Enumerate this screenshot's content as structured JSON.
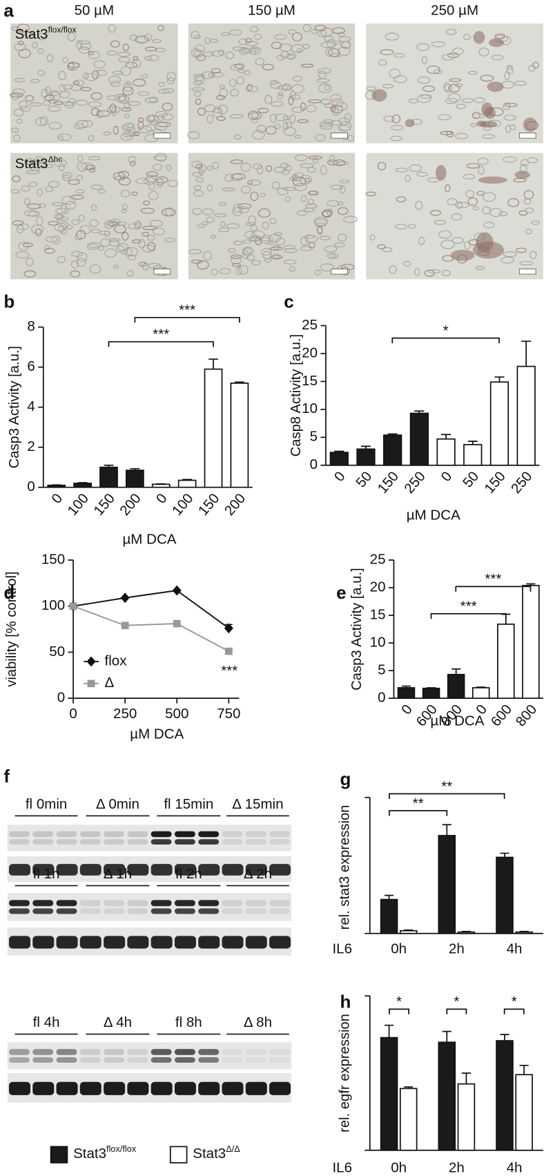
{
  "panel_a": {
    "letter": "a",
    "columns": [
      "50 µM",
      "150 µM",
      "250 µM"
    ],
    "rows": [
      {
        "base": "Stat3",
        "sup": "flox/flox"
      },
      {
        "base": "Stat3",
        "sup": "Δhc"
      }
    ]
  },
  "panel_f": {
    "letter": "f",
    "groups": [
      [
        "fl 0min",
        "Δ 0min",
        "fl 15min",
        "Δ 15min"
      ],
      [
        "fl 1h",
        "Δ 1h",
        "fl 2h",
        "Δ 2h"
      ],
      [
        "fl 4h",
        "Δ 4h",
        "fl 8h",
        "Δ 8h"
      ]
    ]
  },
  "legend": [
    {
      "base": "Stat3",
      "sup": "flox/flox"
    },
    {
      "base": "Stat3",
      "sup": "Δ/Δ"
    }
  ],
  "chart_data": [
    {
      "type": "bar",
      "panel": "b",
      "y_label": "Casp3 Activity [a.u.]",
      "x_label": "µM DCA",
      "categories": [
        "0",
        "100",
        "150",
        "200",
        "0",
        "100",
        "150",
        "200"
      ],
      "values": [
        0.1,
        0.2,
        1.0,
        0.85,
        0.15,
        0.35,
        5.9,
        5.2
      ],
      "errors": [
        0.02,
        0.03,
        0.1,
        0.08,
        0.02,
        0.04,
        0.5,
        0.05
      ],
      "colors": [
        "#1a1a1a",
        "#1a1a1a",
        "#1a1a1a",
        "#1a1a1a",
        "#ffffff",
        "#ffffff",
        "#ffffff",
        "#ffffff"
      ],
      "ylim": [
        0,
        8
      ],
      "yticks": [
        0,
        2,
        4,
        6,
        8
      ],
      "annotations": [
        "***",
        "***"
      ]
    },
    {
      "type": "bar",
      "panel": "c",
      "y_label": "Casp8 Activity [a.u.]",
      "x_label": "µM DCA",
      "categories": [
        "0",
        "50",
        "150",
        "250",
        "0",
        "50",
        "150",
        "250"
      ],
      "values": [
        2.3,
        2.9,
        5.4,
        9.3,
        4.7,
        3.7,
        14.9,
        17.7
      ],
      "errors": [
        0.2,
        0.5,
        0.2,
        0.4,
        0.8,
        0.6,
        0.9,
        4.5
      ],
      "colors": [
        "#1a1a1a",
        "#1a1a1a",
        "#1a1a1a",
        "#1a1a1a",
        "#ffffff",
        "#ffffff",
        "#ffffff",
        "#ffffff"
      ],
      "ylim": [
        0,
        25
      ],
      "yticks": [
        0,
        5,
        10,
        15,
        20,
        25
      ],
      "annotations": [
        "*"
      ]
    },
    {
      "type": "line",
      "panel": "d",
      "y_label": "viability [% control]",
      "x_label": "µM DCA",
      "x": [
        0,
        250,
        500,
        750
      ],
      "xlim": [
        0,
        800
      ],
      "xticks": [
        0,
        250,
        500,
        750
      ],
      "ylim": [
        0,
        150
      ],
      "yticks": [
        0,
        50,
        100,
        150
      ],
      "series": [
        {
          "name": "flox",
          "color": "#111111",
          "marker": "diamond",
          "values": [
            100,
            109,
            117,
            76
          ],
          "errors": [
            0,
            0,
            0,
            4
          ]
        },
        {
          "name": "Δ",
          "color": "#999999",
          "marker": "square",
          "values": [
            100,
            79,
            81,
            51
          ]
        }
      ],
      "annotations": [
        "***"
      ]
    },
    {
      "type": "bar",
      "panel": "e",
      "y_label": "Casp3 Activity [a.u.]",
      "x_label": "µM DCA",
      "categories": [
        "0",
        "600",
        "800",
        "0",
        "600",
        "800"
      ],
      "values": [
        1.9,
        1.8,
        4.3,
        1.9,
        13.4,
        20.4
      ],
      "errors": [
        0.3,
        0.1,
        1.0,
        0.1,
        1.8,
        0.3
      ],
      "colors": [
        "#1a1a1a",
        "#1a1a1a",
        "#1a1a1a",
        "#ffffff",
        "#ffffff",
        "#ffffff"
      ],
      "ylim": [
        0,
        25
      ],
      "yticks": [
        0,
        5,
        10,
        15,
        20,
        25
      ],
      "annotations": [
        "***",
        "***"
      ]
    },
    {
      "type": "bar",
      "panel": "g",
      "y_label": "rel. stat3 expression",
      "x_label": "IL6",
      "categories": [
        "0h",
        "2h",
        "4h"
      ],
      "ylim": [
        0,
        1
      ],
      "series": [
        {
          "color": "#1a1a1a",
          "values": [
            0.25,
            0.72,
            0.56
          ],
          "errors": [
            0.03,
            0.08,
            0.03
          ]
        },
        {
          "color": "#ffffff",
          "values": [
            0.02,
            0.01,
            0.01
          ],
          "errors": [
            0.005,
            0.005,
            0.005
          ]
        }
      ],
      "annotations": [
        "**",
        "**"
      ]
    },
    {
      "type": "bar",
      "panel": "h",
      "y_label": "rel. egfr expression",
      "x_label": "IL6",
      "categories": [
        "0h",
        "2h",
        "4h"
      ],
      "ylim": [
        0,
        1
      ],
      "series": [
        {
          "color": "#1a1a1a",
          "values": [
            0.73,
            0.7,
            0.71
          ],
          "errors": [
            0.08,
            0.07,
            0.04
          ]
        },
        {
          "color": "#ffffff",
          "values": [
            0.4,
            0.43,
            0.49
          ],
          "errors": [
            0.01,
            0.07,
            0.06
          ]
        }
      ],
      "annotations": [
        "*",
        "*",
        "*"
      ]
    }
  ]
}
